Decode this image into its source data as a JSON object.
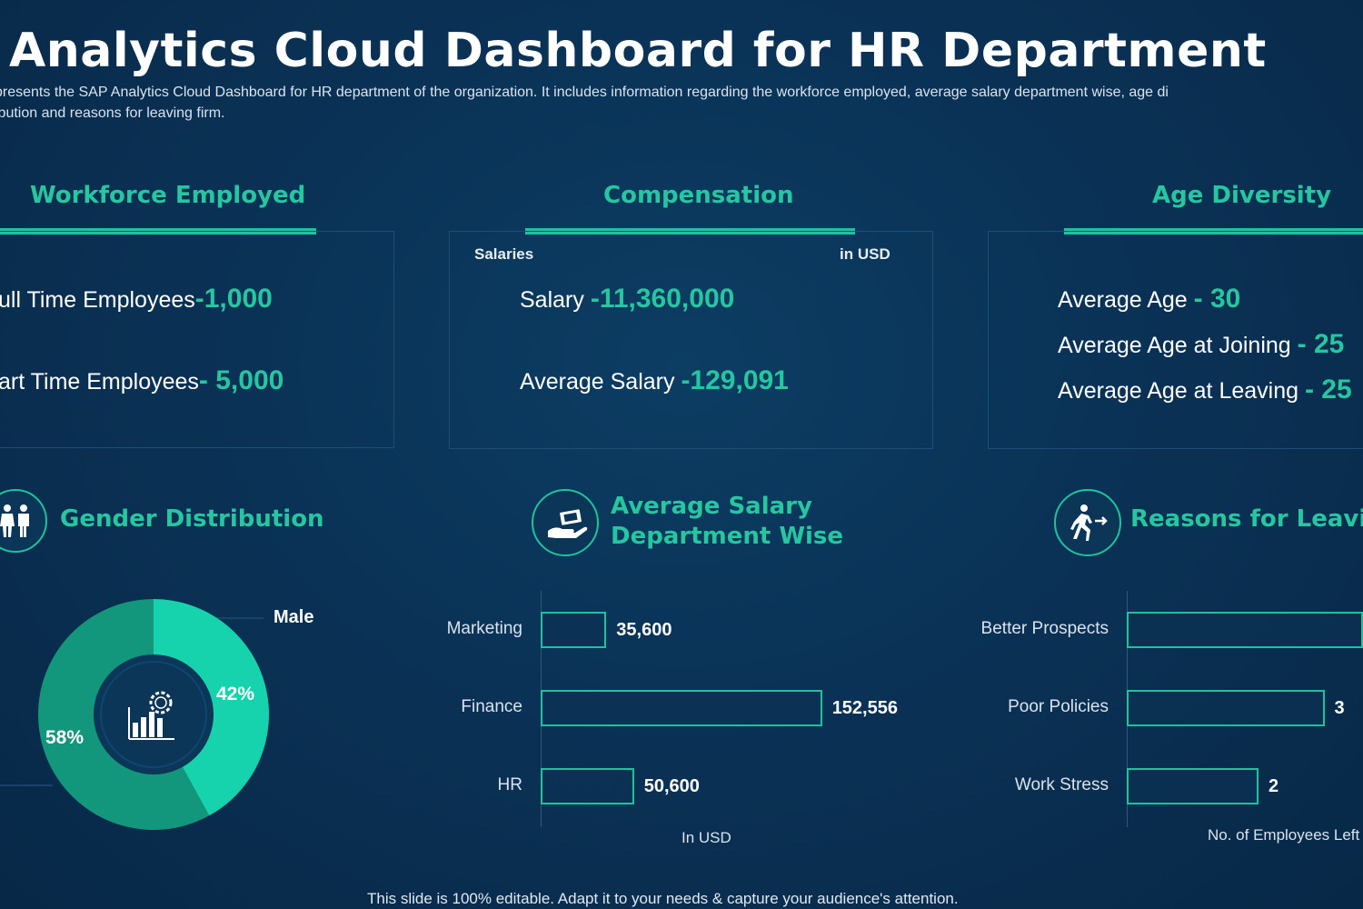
{
  "header": {
    "title": "Analytics Cloud Dashboard for HR Department",
    "subtitle_line1": "presents the SAP Analytics Cloud Dashboard for HR department of the organization. It includes information regarding the workforce employed, average salary department wise, age di",
    "subtitle_line2": "ibution and reasons for leaving firm."
  },
  "workforce": {
    "heading": "Workforce Employed",
    "full_time_label": "ull Time Employees",
    "full_time_value": "-1,000",
    "part_time_label": "art Time Employees",
    "part_time_value": "- 5,000"
  },
  "compensation": {
    "heading": "Compensation",
    "salaries_label": "Salaries",
    "currency_label": "in USD",
    "salary_label": "Salary",
    "salary_value": "-11,360,000",
    "avg_salary_label": "Average Salary",
    "avg_salary_value": "-129,091"
  },
  "age": {
    "heading": "Age Diversity",
    "avg_age_label": "Average Age",
    "avg_age_value": "- 30",
    "avg_join_label": "Average Age at Joining",
    "avg_join_value": "- 25",
    "avg_leave_label": "Average Age at Leaving",
    "avg_leave_value": "- 25"
  },
  "gender": {
    "heading": "Gender Distribution",
    "icon": "people-icon",
    "center_icon": "chart-gear-icon",
    "legend_male": "Male",
    "male_pct_label": "42%",
    "female_pct_label": "58%"
  },
  "salary_dept": {
    "heading_line1": "Average Salary",
    "heading_line2": "Department Wise",
    "icon": "hand-money-icon",
    "axis_title": "In USD"
  },
  "leaving": {
    "heading": "Reasons for Leaving",
    "icon": "running-exit-icon",
    "axis_title": "No. of Employees Left"
  },
  "footer": {
    "text": "This slide is 100% editable. Adapt it to your needs & capture your audience's attention."
  },
  "colors": {
    "accent": "#1fc29c",
    "accent_light": "#16d3ad",
    "donut_dark": "#12977c",
    "background": "#0a3256"
  },
  "chart_data": [
    {
      "type": "pie",
      "variant": "donut",
      "title": "Gender Distribution",
      "slices": [
        {
          "label": "Male",
          "value": 42,
          "color": "#16d3ad"
        },
        {
          "label": "",
          "value": 58,
          "color": "#12977c"
        }
      ]
    },
    {
      "type": "bar",
      "orientation": "horizontal",
      "title": "Average Salary Department Wise",
      "categories": [
        "Marketing",
        "Finance",
        "HR"
      ],
      "values": [
        35600,
        152556,
        50600
      ],
      "value_labels": [
        "35,600",
        "152,556",
        "50,600"
      ],
      "xlabel": "In USD",
      "xlim": [
        0,
        200000
      ]
    },
    {
      "type": "bar",
      "orientation": "horizontal",
      "title": "Reasons for Leaving",
      "categories": [
        "Better Prospects",
        "Poor Policies",
        "Work Stress"
      ],
      "values": [
        null,
        3,
        2
      ],
      "value_labels": [
        "",
        "3",
        "2"
      ],
      "xlabel": "No. of Employees Left",
      "xlim": [
        0,
        4
      ]
    }
  ]
}
